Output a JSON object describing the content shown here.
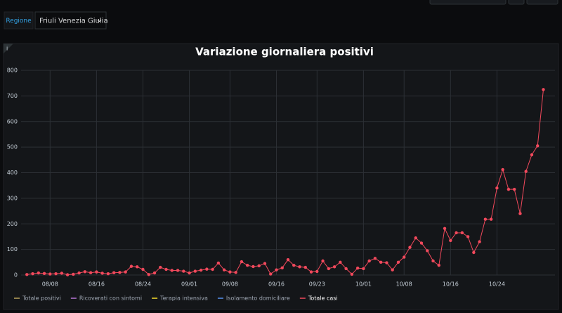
{
  "variables": {
    "label": "Regione",
    "value": "Friuli Venezia Giulia"
  },
  "chart_data": {
    "type": "line",
    "title": "Variazione giornaliera positivi",
    "x": [
      "08/04",
      "08/05",
      "08/06",
      "08/07",
      "08/08",
      "08/09",
      "08/10",
      "08/11",
      "08/12",
      "08/13",
      "08/14",
      "08/15",
      "08/16",
      "08/17",
      "08/18",
      "08/19",
      "08/20",
      "08/21",
      "08/22",
      "08/23",
      "08/24",
      "08/25",
      "08/26",
      "08/27",
      "08/28",
      "08/29",
      "08/30",
      "08/31",
      "09/01",
      "09/02",
      "09/03",
      "09/04",
      "09/05",
      "09/06",
      "09/07",
      "09/08",
      "09/09",
      "09/10",
      "09/11",
      "09/12",
      "09/13",
      "09/14",
      "09/15",
      "09/16",
      "09/17",
      "09/18",
      "09/19",
      "09/20",
      "09/21",
      "09/22",
      "09/23",
      "09/24",
      "09/25",
      "09/26",
      "09/27",
      "09/28",
      "09/29",
      "09/30",
      "10/01",
      "10/02",
      "10/03",
      "10/04",
      "10/05",
      "10/06",
      "10/07",
      "10/08",
      "10/09",
      "10/10",
      "10/11",
      "10/12",
      "10/13",
      "10/14",
      "10/15",
      "10/16",
      "10/17",
      "10/18",
      "10/19",
      "10/20",
      "10/21",
      "10/22",
      "10/23",
      "10/24",
      "10/25",
      "10/26",
      "10/27",
      "10/28",
      "10/29",
      "10/30",
      "10/31",
      "11/01"
    ],
    "series": [
      {
        "name": "Totale casi",
        "color": "#f2495c",
        "values": [
          2,
          5,
          8,
          6,
          4,
          5,
          7,
          1,
          3,
          8,
          13,
          9,
          12,
          7,
          5,
          9,
          10,
          12,
          34,
          32,
          22,
          2,
          8,
          30,
          22,
          18,
          18,
          15,
          8,
          15,
          19,
          23,
          22,
          47,
          20,
          12,
          10,
          52,
          38,
          33,
          36,
          45,
          4,
          20,
          28,
          60,
          38,
          32,
          30,
          12,
          14,
          55,
          25,
          32,
          50,
          25,
          3,
          27,
          25,
          55,
          65,
          50,
          48,
          20,
          50,
          70,
          108,
          145,
          125,
          95,
          55,
          38,
          182,
          135,
          165,
          165,
          150,
          88,
          130,
          218,
          218,
          340,
          412,
          335,
          335,
          240,
          405,
          470,
          505,
          725
        ]
      }
    ],
    "hidden_series": [
      {
        "name": "Totale positivi",
        "color": "#b9a35c"
      },
      {
        "name": "Ricoverati con sintomi",
        "color": "#b877d9"
      },
      {
        "name": "Terapia intensiva",
        "color": "#fade2a"
      },
      {
        "name": "Isolamento domiciliare",
        "color": "#5794f2"
      }
    ],
    "xlim": [
      "08/03",
      "11/03"
    ],
    "xticks": [
      "08/08",
      "08/16",
      "08/24",
      "09/01",
      "09/08",
      "09/16",
      "09/23",
      "10/01",
      "10/08",
      "10/16",
      "10/24"
    ],
    "ylim": [
      0,
      800
    ],
    "yticks": [
      0,
      100,
      200,
      300,
      400,
      500,
      600,
      700,
      800
    ],
    "grid": true
  }
}
